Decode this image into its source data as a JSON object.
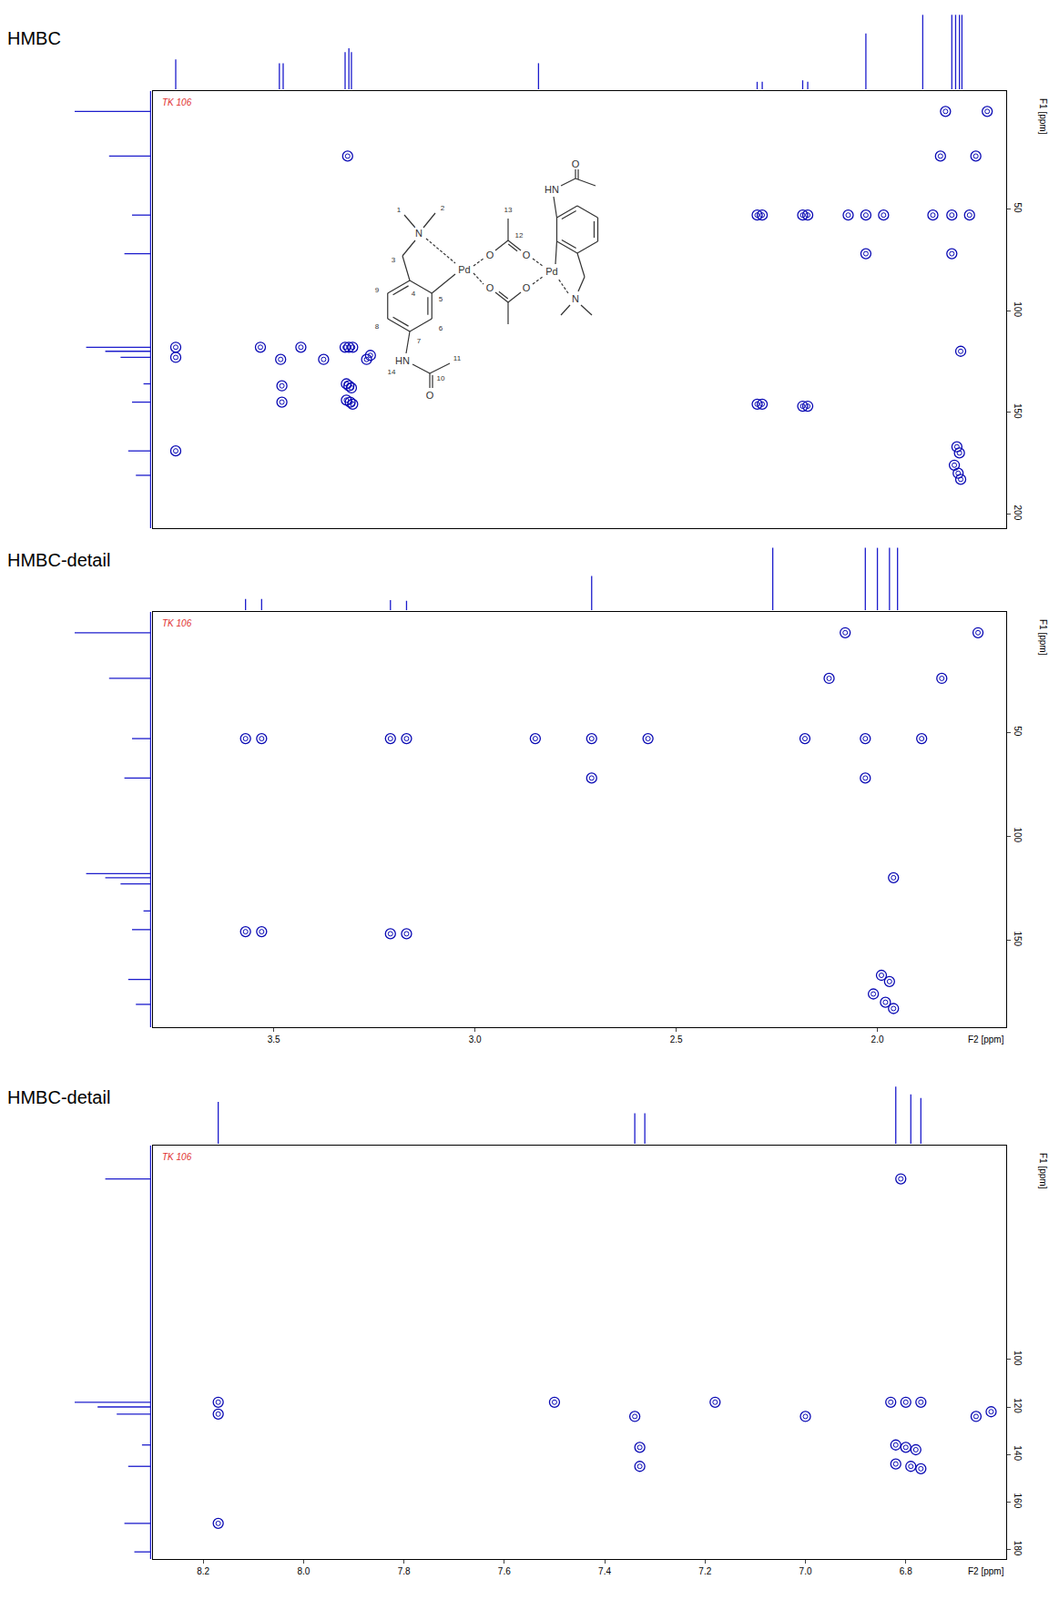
{
  "chart_data": [
    {
      "type": "hmbc",
      "title": "HMBC",
      "annotations": [
        "TK 106"
      ],
      "y_label": "F1 [ppm]",
      "xlim": [
        8.35,
        1.6
      ],
      "ylim": [
        -8,
        207
      ],
      "yticks": [
        50,
        100,
        150,
        200
      ],
      "tick_labels": "y",
      "grid": false,
      "color": "#1c1ccc",
      "proton_spectrum": {
        "x": [
          8.17,
          7.35,
          7.32,
          6.83,
          6.8,
          6.78,
          5.3,
          3.57,
          3.53,
          3.21,
          3.17,
          2.71,
          2.26,
          2.03,
          2.0,
          1.97,
          1.95
        ],
        "values": [
          0.4,
          0.35,
          0.35,
          0.5,
          0.55,
          0.5,
          0.35,
          0.1,
          0.1,
          0.12,
          0.1,
          0.75,
          1.0,
          1.0,
          1.0,
          1.0,
          1.0
        ]
      },
      "carbon_projection": {
        "y": [
          2,
          24,
          53,
          72,
          118,
          120,
          123,
          136,
          145,
          169,
          181
        ],
        "values": [
          1.0,
          0.55,
          0.25,
          0.35,
          0.85,
          0.6,
          0.4,
          0.1,
          0.25,
          0.3,
          0.2
        ]
      },
      "cross_peaks": {
        "color": "#0a0ab4",
        "marker": "circle-open",
        "x": [
          3.57,
          3.53,
          3.21,
          3.17,
          3.57,
          3.53,
          3.21,
          3.17,
          2.85,
          2.71,
          2.57,
          2.71,
          2.18,
          2.03,
          1.89,
          2.12,
          1.84,
          2.03,
          1.96,
          2.08,
          1.75,
          1.99,
          1.97,
          1.98,
          1.96,
          2.01,
          8.17,
          8.17,
          8.17,
          7.5,
          7.34,
          7.33,
          7.33,
          7.18,
          7.0,
          6.83,
          6.8,
          6.77,
          6.82,
          6.8,
          6.78,
          6.82,
          6.79,
          6.77,
          6.81,
          6.66,
          6.63
        ],
        "y": [
          53,
          53,
          53,
          53,
          146,
          146,
          147,
          147,
          53,
          53,
          53,
          72,
          53,
          53,
          53,
          24,
          24,
          72,
          120,
          2,
          2,
          167,
          170,
          180,
          183,
          176,
          118,
          123,
          169,
          118,
          124,
          137,
          145,
          118,
          124,
          118,
          118,
          118,
          136,
          137,
          138,
          144,
          145,
          146,
          24,
          124,
          122
        ]
      }
    },
    {
      "type": "hmbc",
      "title": "HMBC-detail",
      "annotations": [
        "TK 106"
      ],
      "y_label": "F1 [ppm]",
      "x_label": "F2 [ppm]",
      "xlim": [
        3.8,
        1.68
      ],
      "ylim": [
        -8,
        192
      ],
      "xticks": [
        3.5,
        {
          "value": 3,
          "label": "3.0"
        },
        2.5,
        {
          "value": 2,
          "label": "2.0"
        }
      ],
      "yticks": [
        50,
        100,
        150
      ],
      "grid": false,
      "color": "#1c1ccc",
      "proton_spectrum": {
        "x": [
          3.57,
          3.53,
          3.21,
          3.17,
          2.71,
          2.26,
          2.03,
          2.0,
          1.97,
          1.95
        ],
        "values": [
          0.18,
          0.18,
          0.16,
          0.15,
          0.55,
          1.0,
          1.0,
          1.0,
          1.0,
          1.0
        ]
      },
      "carbon_projection": {
        "y": [
          2,
          24,
          53,
          72,
          118,
          120,
          123,
          136,
          145,
          169,
          181
        ],
        "values": [
          1.0,
          0.55,
          0.25,
          0.35,
          0.85,
          0.6,
          0.4,
          0.1,
          0.25,
          0.3,
          0.2
        ]
      },
      "cross_peaks": {
        "color": "#0a0ab4",
        "marker": "circle-open",
        "x": [
          3.57,
          3.53,
          3.21,
          3.17,
          3.57,
          3.53,
          3.21,
          3.17,
          2.85,
          2.71,
          2.57,
          2.71,
          2.18,
          2.03,
          1.89,
          2.12,
          1.84,
          2.03,
          1.96,
          2.08,
          1.75,
          1.99,
          1.97,
          1.98,
          1.96,
          2.01
        ],
        "y": [
          53,
          53,
          53,
          53,
          146,
          146,
          147,
          147,
          53,
          53,
          53,
          72,
          53,
          53,
          53,
          24,
          24,
          72,
          120,
          2,
          2,
          167,
          170,
          180,
          183,
          176
        ]
      }
    },
    {
      "type": "hmbc",
      "title": "HMBC-detail",
      "annotations": [
        "TK 106"
      ],
      "y_label": "F1 [ppm]",
      "x_label": "F2 [ppm]",
      "xlim": [
        8.3,
        6.6
      ],
      "ylim": [
        10,
        184
      ],
      "xticks": [
        8.2,
        {
          "value": 8,
          "label": "8.0"
        },
        7.8,
        7.6,
        7.4,
        7.2,
        {
          "value": 7,
          "label": "7.0"
        },
        6.8
      ],
      "yticks": [
        100,
        120,
        140,
        160,
        180
      ],
      "grid": false,
      "color": "#1c1ccc",
      "proton_spectrum": {
        "x": [
          8.17,
          7.34,
          7.32,
          6.82,
          6.79,
          6.77
        ],
        "values": [
          0.55,
          0.4,
          0.4,
          0.75,
          0.65,
          0.6
        ]
      },
      "carbon_projection": {
        "y": [
          24,
          118,
          120,
          123,
          136,
          145,
          169,
          181
        ],
        "values": [
          0.6,
          1.0,
          0.7,
          0.45,
          0.12,
          0.3,
          0.35,
          0.22
        ]
      },
      "cross_peaks": {
        "color": "#0a0ab4",
        "marker": "circle-open",
        "x": [
          8.17,
          8.17,
          8.17,
          7.5,
          7.34,
          7.33,
          7.33,
          7.18,
          7.0,
          6.83,
          6.8,
          6.77,
          6.82,
          6.8,
          6.78,
          6.82,
          6.79,
          6.77,
          6.81,
          6.66,
          6.63
        ],
        "y": [
          118,
          123,
          169,
          118,
          124,
          137,
          145,
          118,
          124,
          118,
          118,
          118,
          136,
          137,
          138,
          144,
          145,
          146,
          24,
          124,
          122
        ]
      }
    }
  ],
  "structure": {
    "atom_labels": [
      "N",
      "Pd",
      "O",
      "O",
      "O",
      "O",
      "Pd",
      "HN",
      "O",
      "HN",
      "O",
      "N"
    ],
    "locants": [
      "1",
      "2",
      "3",
      "4",
      "5",
      "6",
      "7",
      "8",
      "9",
      "10",
      "11",
      "12",
      "13",
      "14"
    ]
  }
}
